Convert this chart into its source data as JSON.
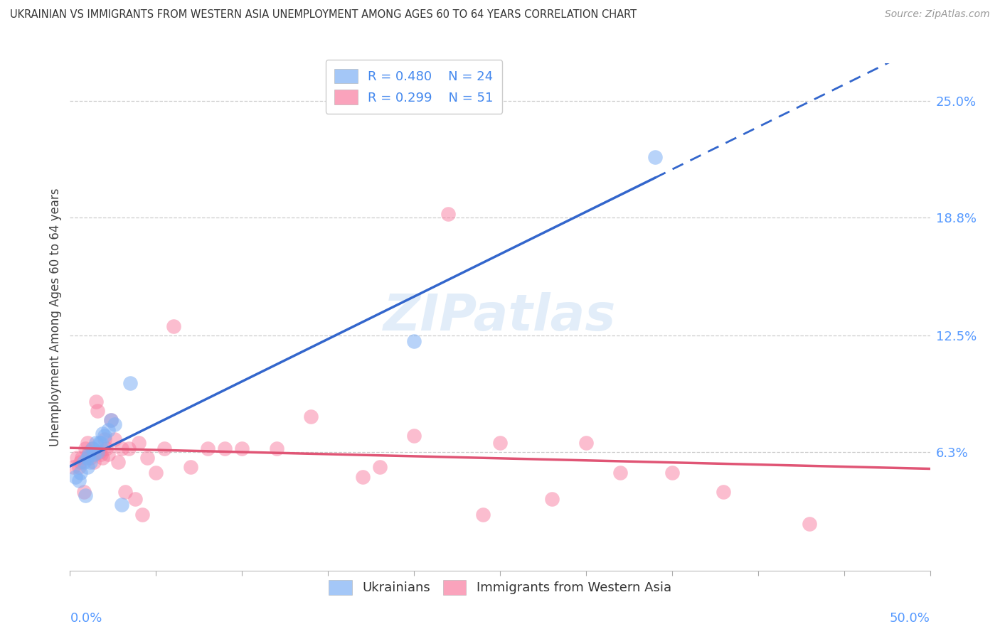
{
  "title": "UKRAINIAN VS IMMIGRANTS FROM WESTERN ASIA UNEMPLOYMENT AMONG AGES 60 TO 64 YEARS CORRELATION CHART",
  "source": "Source: ZipAtlas.com",
  "ylabel": "Unemployment Among Ages 60 to 64 years",
  "ytick_labels": [
    "",
    "6.3%",
    "12.5%",
    "18.8%",
    "25.0%"
  ],
  "ytick_values": [
    0.0,
    0.063,
    0.125,
    0.188,
    0.25
  ],
  "xlim": [
    0.0,
    0.5
  ],
  "ylim": [
    0.0,
    0.27
  ],
  "legend_blue_R": "R = 0.480",
  "legend_blue_N": "N = 24",
  "legend_pink_R": "R = 0.299",
  "legend_pink_N": "N = 51",
  "blue_color": "#7EB0F5",
  "pink_color": "#F87DA0",
  "blue_line_color": "#3366CC",
  "pink_line_color": "#E05575",
  "watermark": "ZIPatlas",
  "blue_scatter_x": [
    0.003,
    0.005,
    0.006,
    0.008,
    0.009,
    0.01,
    0.01,
    0.011,
    0.012,
    0.013,
    0.014,
    0.015,
    0.016,
    0.017,
    0.018,
    0.019,
    0.02,
    0.022,
    0.024,
    0.026,
    0.03,
    0.035,
    0.2,
    0.34
  ],
  "blue_scatter_y": [
    0.05,
    0.048,
    0.052,
    0.058,
    0.04,
    0.055,
    0.06,
    0.062,
    0.058,
    0.065,
    0.062,
    0.068,
    0.063,
    0.068,
    0.068,
    0.073,
    0.072,
    0.075,
    0.08,
    0.078,
    0.035,
    0.1,
    0.122,
    0.22
  ],
  "pink_scatter_x": [
    0.002,
    0.004,
    0.005,
    0.006,
    0.007,
    0.008,
    0.009,
    0.01,
    0.011,
    0.012,
    0.013,
    0.014,
    0.015,
    0.016,
    0.017,
    0.018,
    0.019,
    0.02,
    0.021,
    0.022,
    0.024,
    0.026,
    0.028,
    0.03,
    0.032,
    0.034,
    0.038,
    0.04,
    0.042,
    0.045,
    0.05,
    0.055,
    0.06,
    0.07,
    0.08,
    0.09,
    0.1,
    0.12,
    0.14,
    0.18,
    0.22,
    0.25,
    0.28,
    0.3,
    0.32,
    0.35,
    0.38,
    0.2,
    0.17,
    0.24,
    0.43
  ],
  "pink_scatter_y": [
    0.055,
    0.06,
    0.055,
    0.058,
    0.06,
    0.042,
    0.065,
    0.068,
    0.063,
    0.06,
    0.065,
    0.058,
    0.09,
    0.085,
    0.063,
    0.062,
    0.06,
    0.07,
    0.065,
    0.062,
    0.08,
    0.07,
    0.058,
    0.065,
    0.042,
    0.065,
    0.038,
    0.068,
    0.03,
    0.06,
    0.052,
    0.065,
    0.13,
    0.055,
    0.065,
    0.065,
    0.065,
    0.065,
    0.082,
    0.055,
    0.19,
    0.068,
    0.038,
    0.068,
    0.052,
    0.052,
    0.042,
    0.072,
    0.05,
    0.03,
    0.025
  ]
}
